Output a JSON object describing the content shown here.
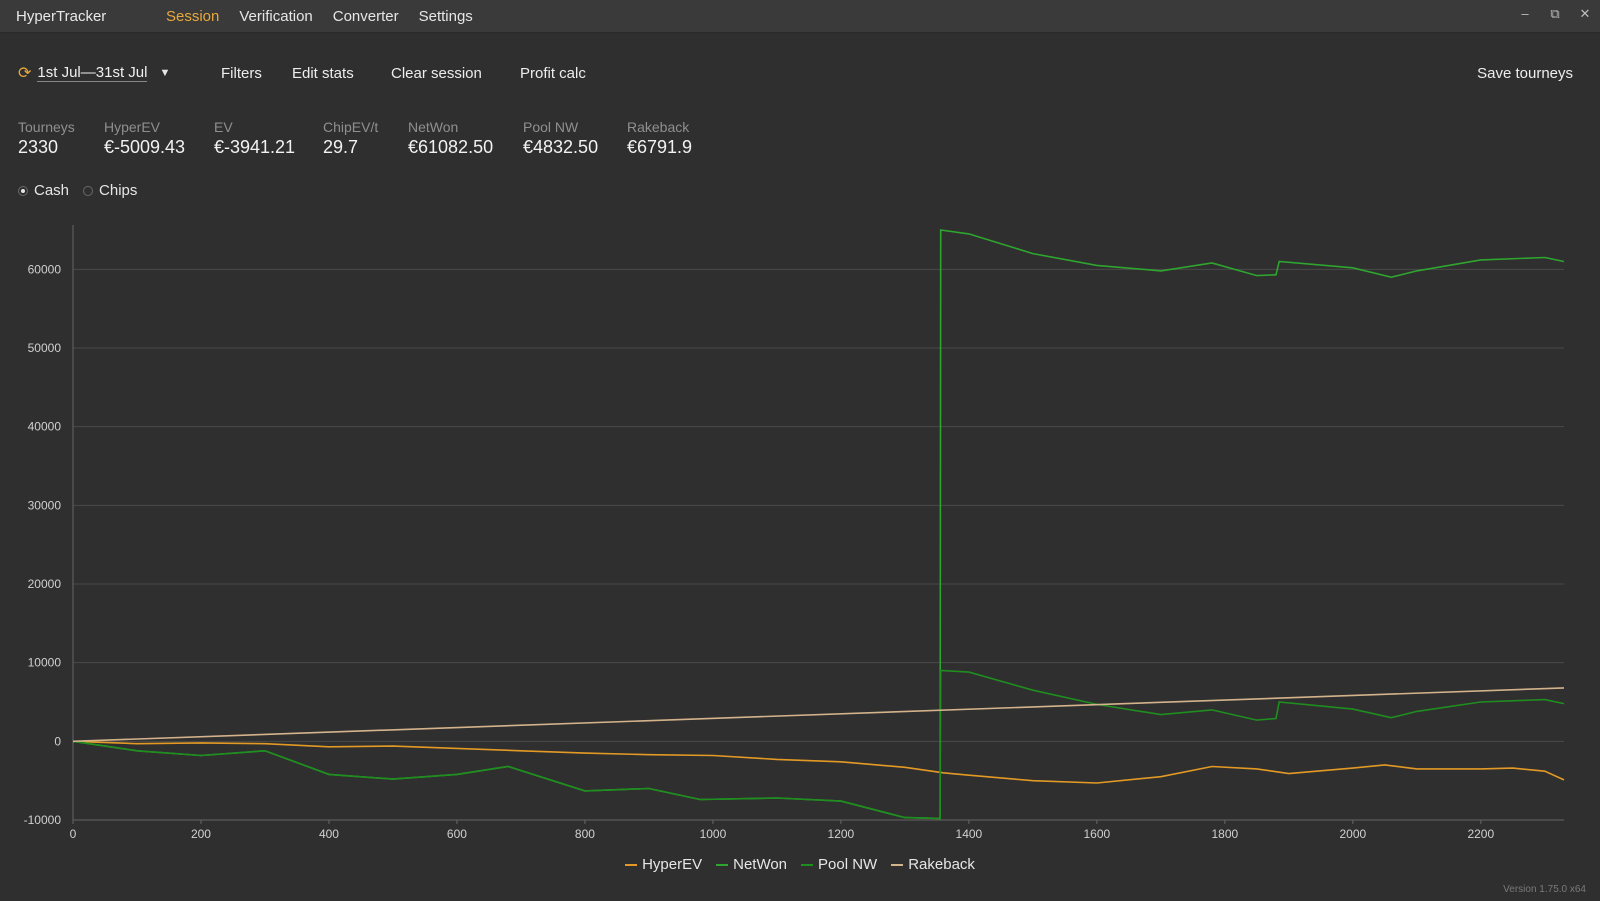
{
  "window": {
    "app_title": "HyperTracker",
    "menu": [
      {
        "label": "Session",
        "active": true
      },
      {
        "label": "Verification",
        "active": false
      },
      {
        "label": "Converter",
        "active": false
      },
      {
        "label": "Settings",
        "active": false
      }
    ],
    "controls": {
      "minimize": "–",
      "restore": "⧉",
      "close": "✕"
    }
  },
  "toolbar": {
    "date_range": "1st Jul—31st Jul",
    "filters": "Filters",
    "edit_stats": "Edit stats",
    "clear_session": "Clear session",
    "profit_calc": "Profit calc",
    "save_tourneys": "Save tourneys"
  },
  "stats": [
    {
      "label": "Tourneys",
      "value": "2330"
    },
    {
      "label": "HyperEV",
      "value": "€-5009.43"
    },
    {
      "label": "EV",
      "value": "€-3941.21"
    },
    {
      "label": "ChipEV/t",
      "value": "29.7"
    },
    {
      "label": "NetWon",
      "value": "€61082.50"
    },
    {
      "label": "Pool NW",
      "value": "€4832.50"
    },
    {
      "label": "Rakeback",
      "value": "€6791.9"
    }
  ],
  "mode": {
    "cash": "Cash",
    "chips": "Chips",
    "selected": "cash"
  },
  "chart_data": {
    "type": "line",
    "xlim": [
      0,
      2330
    ],
    "ylim": [
      -10000,
      65000
    ],
    "x_ticks": [
      0,
      200,
      400,
      600,
      800,
      1000,
      1200,
      1400,
      1600,
      1800,
      2000,
      2200
    ],
    "y_ticks": [
      -10000,
      0,
      10000,
      20000,
      30000,
      40000,
      50000,
      60000
    ],
    "grid": true,
    "legend_position": "bottom-center",
    "series": [
      {
        "name": "HyperEV",
        "color": "#e39a25",
        "points": [
          [
            0,
            0
          ],
          [
            100,
            -300
          ],
          [
            200,
            -200
          ],
          [
            300,
            -300
          ],
          [
            400,
            -700
          ],
          [
            500,
            -600
          ],
          [
            600,
            -900
          ],
          [
            700,
            -1200
          ],
          [
            800,
            -1500
          ],
          [
            900,
            -1700
          ],
          [
            1000,
            -1800
          ],
          [
            1100,
            -2300
          ],
          [
            1200,
            -2600
          ],
          [
            1300,
            -3300
          ],
          [
            1360,
            -4000
          ],
          [
            1400,
            -4300
          ],
          [
            1500,
            -5000
          ],
          [
            1600,
            -5300
          ],
          [
            1700,
            -4500
          ],
          [
            1780,
            -3200
          ],
          [
            1850,
            -3500
          ],
          [
            1900,
            -4100
          ],
          [
            2000,
            -3400
          ],
          [
            2050,
            -3000
          ],
          [
            2100,
            -3500
          ],
          [
            2200,
            -3500
          ],
          [
            2250,
            -3400
          ],
          [
            2300,
            -3800
          ],
          [
            2330,
            -4900
          ]
        ]
      },
      {
        "name": "NetWon",
        "color": "#2ea52e",
        "points": [
          [
            0,
            0
          ],
          [
            100,
            -1200
          ],
          [
            200,
            -1800
          ],
          [
            300,
            -1200
          ],
          [
            400,
            -4200
          ],
          [
            500,
            -4800
          ],
          [
            600,
            -4200
          ],
          [
            680,
            -3200
          ],
          [
            800,
            -6300
          ],
          [
            900,
            -6000
          ],
          [
            980,
            -7400
          ],
          [
            1100,
            -7200
          ],
          [
            1200,
            -7600
          ],
          [
            1300,
            -9700
          ],
          [
            1355,
            -9800
          ],
          [
            1356,
            65000
          ],
          [
            1400,
            64500
          ],
          [
            1500,
            62000
          ],
          [
            1600,
            60500
          ],
          [
            1700,
            59800
          ],
          [
            1780,
            60800
          ],
          [
            1850,
            59200
          ],
          [
            1880,
            59300
          ],
          [
            1885,
            61000
          ],
          [
            2000,
            60200
          ],
          [
            2060,
            59000
          ],
          [
            2100,
            59800
          ],
          [
            2150,
            60500
          ],
          [
            2200,
            61200
          ],
          [
            2300,
            61500
          ],
          [
            2330,
            61000
          ]
        ]
      },
      {
        "name": "Pool NW",
        "color": "#1f8e1f",
        "points": [
          [
            0,
            0
          ],
          [
            100,
            -1200
          ],
          [
            200,
            -1800
          ],
          [
            300,
            -1200
          ],
          [
            400,
            -4200
          ],
          [
            500,
            -4800
          ],
          [
            600,
            -4200
          ],
          [
            680,
            -3200
          ],
          [
            800,
            -6300
          ],
          [
            900,
            -6000
          ],
          [
            980,
            -7400
          ],
          [
            1100,
            -7200
          ],
          [
            1200,
            -7600
          ],
          [
            1300,
            -9700
          ],
          [
            1355,
            -9800
          ],
          [
            1356,
            9000
          ],
          [
            1400,
            8800
          ],
          [
            1500,
            6500
          ],
          [
            1600,
            4700
          ],
          [
            1700,
            3400
          ],
          [
            1780,
            4000
          ],
          [
            1850,
            2700
          ],
          [
            1880,
            2900
          ],
          [
            1885,
            5000
          ],
          [
            2000,
            4100
          ],
          [
            2060,
            3000
          ],
          [
            2100,
            3800
          ],
          [
            2200,
            5000
          ],
          [
            2300,
            5300
          ],
          [
            2330,
            4800
          ]
        ]
      },
      {
        "name": "Rakeback",
        "color": "#d4b38c",
        "points": [
          [
            0,
            0
          ],
          [
            2330,
            6791.9
          ]
        ]
      }
    ]
  },
  "version": "Version 1.75.0 x64"
}
